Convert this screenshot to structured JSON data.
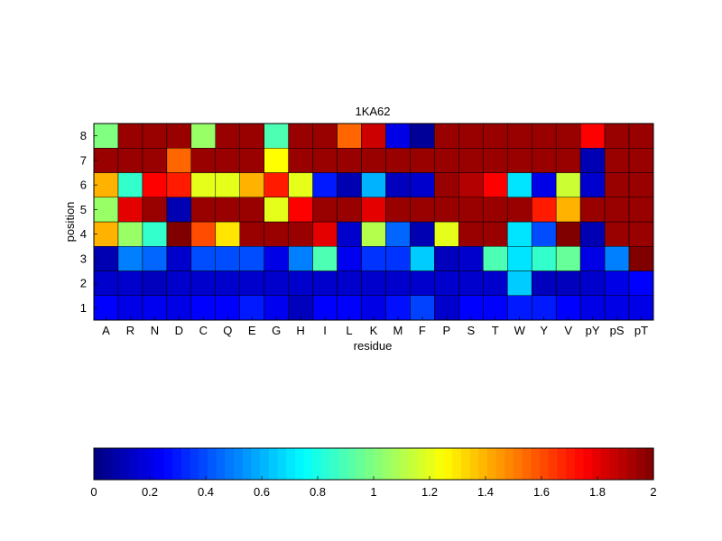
{
  "chart_data": {
    "type": "heatmap",
    "title": "1KA62",
    "xlabel": "residue",
    "ylabel": "position",
    "x_categories": [
      "A",
      "R",
      "N",
      "D",
      "C",
      "Q",
      "E",
      "G",
      "H",
      "I",
      "L",
      "K",
      "M",
      "F",
      "P",
      "S",
      "T",
      "W",
      "Y",
      "V",
      "pY",
      "pS",
      "pT"
    ],
    "y_categories": [
      "1",
      "2",
      "3",
      "4",
      "5",
      "6",
      "7",
      "8"
    ],
    "colormap": "jet",
    "clim": [
      0,
      2
    ],
    "colorbar": {
      "placement": "bottom",
      "ticks": [
        0,
        0.2,
        0.4,
        0.6,
        0.8,
        1,
        1.2,
        1.4,
        1.6,
        1.8,
        2
      ],
      "tick_labels": [
        "0",
        "0.2",
        "0.4",
        "0.6",
        "0.8",
        "1",
        "1.2",
        "1.4",
        "1.6",
        "1.8",
        "2"
      ]
    },
    "values": [
      [
        0.25,
        0.2,
        0.22,
        0.2,
        0.25,
        0.25,
        0.3,
        0.22,
        0.12,
        0.25,
        0.25,
        0.2,
        0.28,
        0.38,
        0.15,
        0.25,
        0.25,
        0.3,
        0.3,
        0.25,
        0.2,
        0.2,
        0.2
      ],
      [
        0.15,
        0.15,
        0.12,
        0.15,
        0.15,
        0.15,
        0.15,
        0.15,
        0.15,
        0.15,
        0.15,
        0.15,
        0.15,
        0.15,
        0.15,
        0.15,
        0.15,
        0.65,
        0.12,
        0.12,
        0.15,
        0.2,
        0.25
      ],
      [
        0.1,
        0.5,
        0.45,
        0.15,
        0.4,
        0.4,
        0.4,
        0.2,
        0.5,
        0.9,
        0.22,
        0.35,
        0.35,
        0.65,
        0.12,
        0.15,
        0.9,
        0.7,
        0.85,
        0.95,
        0.2,
        0.5,
        2.0
      ],
      [
        1.4,
        1.05,
        0.85,
        2.0,
        1.6,
        1.3,
        1.95,
        1.95,
        1.95,
        1.8,
        0.15,
        1.1,
        0.45,
        0.1,
        1.2,
        1.95,
        1.95,
        0.7,
        0.4,
        2.0,
        0.1,
        1.95,
        1.95
      ],
      [
        1.05,
        1.8,
        1.95,
        0.1,
        1.95,
        1.95,
        1.95,
        1.2,
        1.75,
        1.95,
        1.95,
        1.8,
        1.95,
        1.95,
        1.95,
        1.95,
        1.95,
        1.95,
        1.7,
        1.4,
        1.95,
        1.95,
        1.95
      ],
      [
        1.4,
        0.85,
        1.75,
        1.7,
        1.2,
        1.2,
        1.4,
        1.7,
        1.2,
        0.3,
        0.1,
        0.6,
        0.12,
        0.15,
        1.95,
        1.9,
        1.75,
        0.7,
        0.2,
        1.15,
        0.15,
        1.95,
        1.95
      ],
      [
        1.95,
        1.95,
        1.95,
        1.55,
        1.95,
        1.95,
        1.95,
        1.25,
        1.95,
        1.95,
        1.95,
        1.95,
        1.95,
        1.95,
        1.95,
        1.95,
        1.95,
        1.95,
        1.95,
        1.95,
        0.1,
        1.95,
        1.95
      ],
      [
        1.0,
        1.95,
        1.95,
        1.95,
        1.05,
        1.95,
        1.95,
        0.9,
        1.95,
        1.95,
        1.55,
        1.85,
        0.2,
        0.05,
        1.95,
        1.95,
        1.95,
        1.95,
        1.95,
        1.95,
        1.75,
        1.95,
        1.95
      ]
    ]
  }
}
